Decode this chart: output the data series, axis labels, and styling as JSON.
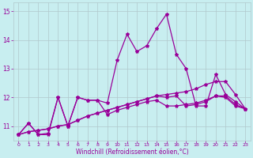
{
  "xlabel": "Windchill (Refroidissement éolien,°C)",
  "x": [
    0,
    1,
    2,
    3,
    4,
    5,
    6,
    7,
    8,
    9,
    10,
    11,
    12,
    13,
    14,
    15,
    16,
    17,
    18,
    19,
    20,
    21,
    22,
    23
  ],
  "line1": [
    10.7,
    11.1,
    10.7,
    10.7,
    12.0,
    11.0,
    12.0,
    11.9,
    11.9,
    11.8,
    13.3,
    14.2,
    13.6,
    13.8,
    14.4,
    14.9,
    13.5,
    13.0,
    11.7,
    11.7,
    12.8,
    12.1,
    11.85,
    11.6
  ],
  "line2": [
    10.7,
    11.1,
    10.7,
    10.75,
    12.0,
    11.0,
    12.0,
    11.9,
    11.9,
    11.4,
    11.55,
    11.65,
    11.75,
    11.85,
    11.9,
    11.7,
    11.7,
    11.75,
    11.8,
    11.9,
    12.05,
    12.05,
    11.75,
    11.6
  ],
  "line3": [
    10.7,
    10.8,
    10.85,
    10.9,
    11.0,
    11.05,
    11.2,
    11.35,
    11.45,
    11.55,
    11.65,
    11.75,
    11.85,
    11.95,
    12.05,
    12.1,
    12.15,
    12.2,
    12.3,
    12.45,
    12.55,
    12.55,
    12.1,
    11.6
  ],
  "line4": [
    10.7,
    10.8,
    10.85,
    10.9,
    11.0,
    11.05,
    11.2,
    11.35,
    11.45,
    11.55,
    11.65,
    11.75,
    11.85,
    11.95,
    12.05,
    12.0,
    12.05,
    11.7,
    11.75,
    11.85,
    12.05,
    12.0,
    11.7,
    11.6
  ],
  "color": "#990099",
  "bg_color": "#c8eef0",
  "grid_color": "#b0c8cc",
  "ylim": [
    10.5,
    15.3
  ],
  "yticks": [
    11,
    12,
    13,
    14,
    15
  ],
  "xticks": [
    0,
    1,
    2,
    3,
    4,
    5,
    6,
    7,
    8,
    9,
    10,
    11,
    12,
    13,
    14,
    15,
    16,
    17,
    18,
    19,
    20,
    21,
    22,
    23
  ]
}
